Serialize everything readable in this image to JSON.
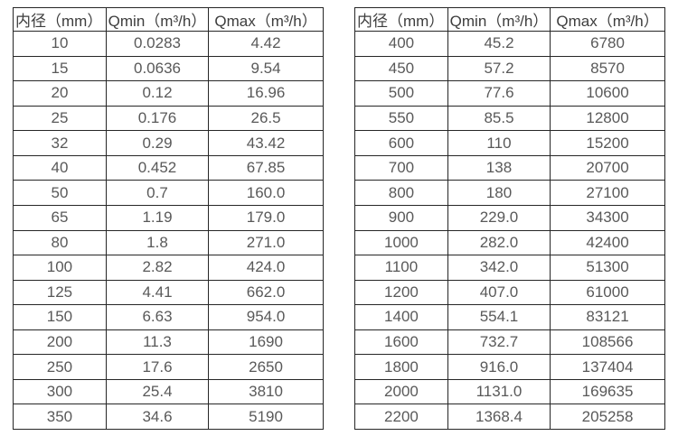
{
  "page": {
    "background": "#ffffff",
    "border_color": "#262626",
    "header_text_color": "#3d3d3d",
    "data_text_color": "#595959"
  },
  "tables": [
    {
      "name": "flow-spec-table-small-diameters",
      "headers": [
        "内径（mm）",
        "Qmin（m³/h）",
        "Qmax（m³/h）"
      ],
      "rows": [
        [
          "10",
          "0.0283",
          "4.42"
        ],
        [
          "15",
          "0.0636",
          "9.54"
        ],
        [
          "20",
          "0.12",
          "16.96"
        ],
        [
          "25",
          "0.176",
          "26.5"
        ],
        [
          "32",
          "0.29",
          "43.42"
        ],
        [
          "40",
          "0.452",
          "67.85"
        ],
        [
          "50",
          "0.7",
          "160.0"
        ],
        [
          "65",
          "1.19",
          "179.0"
        ],
        [
          "80",
          "1.8",
          "271.0"
        ],
        [
          "100",
          "2.82",
          "424.0"
        ],
        [
          "125",
          "4.41",
          "662.0"
        ],
        [
          "150",
          "6.63",
          "954.0"
        ],
        [
          "200",
          "11.3",
          "1690"
        ],
        [
          "250",
          "17.6",
          "2650"
        ],
        [
          "300",
          "25.4",
          "3810"
        ],
        [
          "350",
          "34.6",
          "5190"
        ]
      ]
    },
    {
      "name": "flow-spec-table-large-diameters",
      "headers": [
        "内径（mm）",
        "Qmin（m³/h）",
        "Qmax（m³/h）"
      ],
      "rows": [
        [
          "400",
          "45.2",
          "6780"
        ],
        [
          "450",
          "57.2",
          "8570"
        ],
        [
          "500",
          "77.6",
          "10600"
        ],
        [
          "550",
          "85.5",
          "12800"
        ],
        [
          "600",
          "110",
          "15200"
        ],
        [
          "700",
          "138",
          "20700"
        ],
        [
          "800",
          "180",
          "27100"
        ],
        [
          "900",
          "229.0",
          "34300"
        ],
        [
          "1000",
          "282.0",
          "42400"
        ],
        [
          "1100",
          "342.0",
          "51300"
        ],
        [
          "1200",
          "407.0",
          "61000"
        ],
        [
          "1400",
          "554.1",
          "83121"
        ],
        [
          "1600",
          "732.7",
          "108566"
        ],
        [
          "1800",
          "916.0",
          "137404"
        ],
        [
          "2000",
          "1131.0",
          "169635"
        ],
        [
          "2200",
          "1368.4",
          "205258"
        ]
      ]
    }
  ]
}
